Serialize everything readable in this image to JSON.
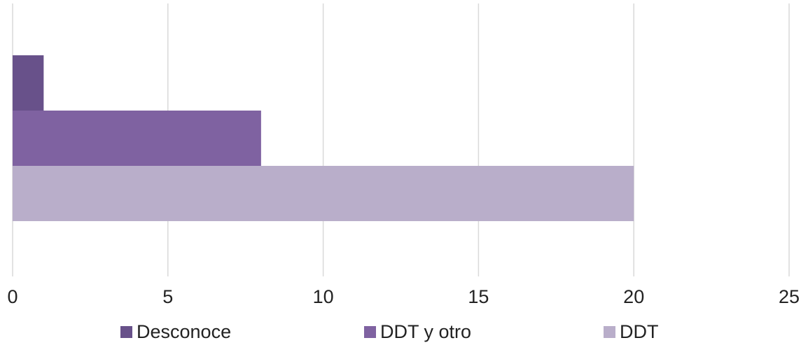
{
  "chart_data": {
    "type": "bar",
    "orientation": "horizontal",
    "categories": [
      null
    ],
    "series": [
      {
        "name": "Desconoce",
        "color": "#68518a",
        "values": [
          1
        ]
      },
      {
        "name": "DDT y otro",
        "color": "#7f62a1",
        "values": [
          8
        ]
      },
      {
        "name": "DDT",
        "color": "#b9aeca",
        "values": [
          20
        ]
      }
    ],
    "xlim": [
      0,
      25
    ],
    "xticks": [
      0,
      5,
      10,
      15,
      20,
      25
    ],
    "grid": true,
    "legend": "bottom"
  }
}
